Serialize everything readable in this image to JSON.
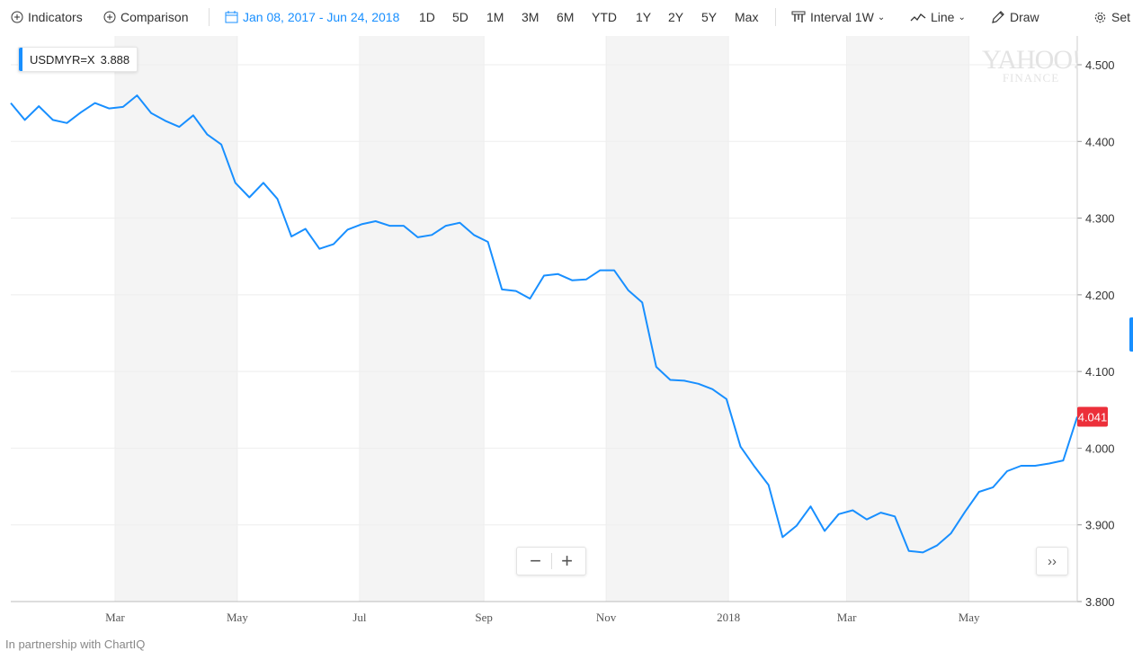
{
  "toolbar": {
    "indicators": "Indicators",
    "comparison": "Comparison",
    "date_range": "Jan 08, 2017 - Jun 24, 2018",
    "ranges": [
      "1D",
      "5D",
      "1M",
      "3M",
      "6M",
      "YTD",
      "1Y",
      "2Y",
      "5Y",
      "Max"
    ],
    "interval": "Interval 1W",
    "chart_type": "Line",
    "draw": "Draw",
    "settings": "Set"
  },
  "symbol_box": {
    "symbol": "USDMYR=X",
    "value": "3.888"
  },
  "watermark": {
    "line1": "YAHOO!",
    "line2": "FINANCE"
  },
  "footer": "In partnership with ChartIQ",
  "colors": {
    "line": "#188fff",
    "price_tag": "#ec2f3a",
    "band": "#f4f4f4",
    "grid": "#eeeeee"
  },
  "icons": {
    "indicators": "plus-circle-icon",
    "comparison": "plus-circle-icon",
    "date": "calendar-icon",
    "interval": "candle-icon",
    "chart_type": "line-chart-icon",
    "draw": "pencil-icon",
    "settings": "gear-icon"
  },
  "controls": {
    "zoom_out": "−",
    "zoom_in": "+",
    "home": "››"
  },
  "chart_data": {
    "type": "line",
    "series": [
      {
        "x": [
          "2017-01-08",
          "2017-01-15",
          "2017-01-22",
          "2017-01-29",
          "2017-02-05",
          "2017-02-12",
          "2017-02-19",
          "2017-02-26",
          "2017-03-05",
          "2017-03-12",
          "2017-03-19",
          "2017-03-26",
          "2017-04-02",
          "2017-04-09",
          "2017-04-16",
          "2017-04-23",
          "2017-04-30",
          "2017-05-07",
          "2017-05-14",
          "2017-05-21",
          "2017-05-28",
          "2017-06-04",
          "2017-06-11",
          "2017-06-18",
          "2017-06-25",
          "2017-07-02",
          "2017-07-09",
          "2017-07-16",
          "2017-07-23",
          "2017-07-30",
          "2017-08-06",
          "2017-08-13",
          "2017-08-20",
          "2017-08-27",
          "2017-09-03",
          "2017-09-10",
          "2017-09-17",
          "2017-09-24",
          "2017-10-01",
          "2017-10-08",
          "2017-10-15",
          "2017-10-22",
          "2017-10-29",
          "2017-11-05",
          "2017-11-12",
          "2017-11-19",
          "2017-11-26",
          "2017-12-03",
          "2017-12-10",
          "2017-12-17",
          "2017-12-24",
          "2017-12-31",
          "2018-01-07",
          "2018-01-14",
          "2018-01-21",
          "2018-01-28",
          "2018-02-04",
          "2018-02-11",
          "2018-02-18",
          "2018-02-25",
          "2018-03-04",
          "2018-03-11",
          "2018-03-18",
          "2018-03-25",
          "2018-04-01",
          "2018-04-08",
          "2018-04-15",
          "2018-04-22",
          "2018-04-29",
          "2018-05-06",
          "2018-05-13",
          "2018-05-20",
          "2018-05-27",
          "2018-06-03",
          "2018-06-10",
          "2018-06-17",
          "2018-06-24"
        ],
        "values": [
          4.45,
          4.428,
          4.446,
          4.428,
          4.424,
          4.438,
          4.45,
          4.443,
          4.445,
          4.46,
          4.437,
          4.427,
          4.419,
          4.434,
          4.409,
          4.396,
          4.346,
          4.327,
          4.346,
          4.325,
          4.276,
          4.286,
          4.26,
          4.266,
          4.285,
          4.292,
          4.296,
          4.29,
          4.29,
          4.275,
          4.278,
          4.29,
          4.294,
          4.278,
          4.269,
          4.207,
          4.205,
          4.195,
          4.225,
          4.227,
          4.219,
          4.22,
          4.232,
          4.232,
          4.206,
          4.19,
          4.106,
          4.089,
          4.088,
          4.084,
          4.077,
          4.064,
          4.002,
          3.976,
          3.952,
          3.884,
          3.899,
          3.924,
          3.892,
          3.914,
          3.919,
          3.907,
          3.916,
          3.911,
          3.866,
          3.864,
          3.873,
          3.889,
          3.917,
          3.943,
          3.949,
          3.97,
          3.977,
          3.977,
          3.98,
          3.984,
          4.041
        ]
      }
    ],
    "x_tick_labels": [
      "Mar",
      "May",
      "Jul",
      "Sep",
      "Nov",
      "2018",
      "Mar",
      "May"
    ],
    "x_tick_dates": [
      "2017-03-01",
      "2017-05-01",
      "2017-07-01",
      "2017-09-01",
      "2017-11-01",
      "2018-01-01",
      "2018-03-01",
      "2018-05-01"
    ],
    "y_tick_labels": [
      "4.500",
      "4.400",
      "4.300",
      "4.200",
      "4.100",
      "4.000",
      "3.900",
      "3.800"
    ],
    "y_ticks": [
      4.5,
      4.4,
      4.3,
      4.2,
      4.1,
      4.0,
      3.9,
      3.8
    ],
    "ylim": [
      3.8,
      4.5
    ],
    "last_value_label": "4.041",
    "grid": true
  }
}
